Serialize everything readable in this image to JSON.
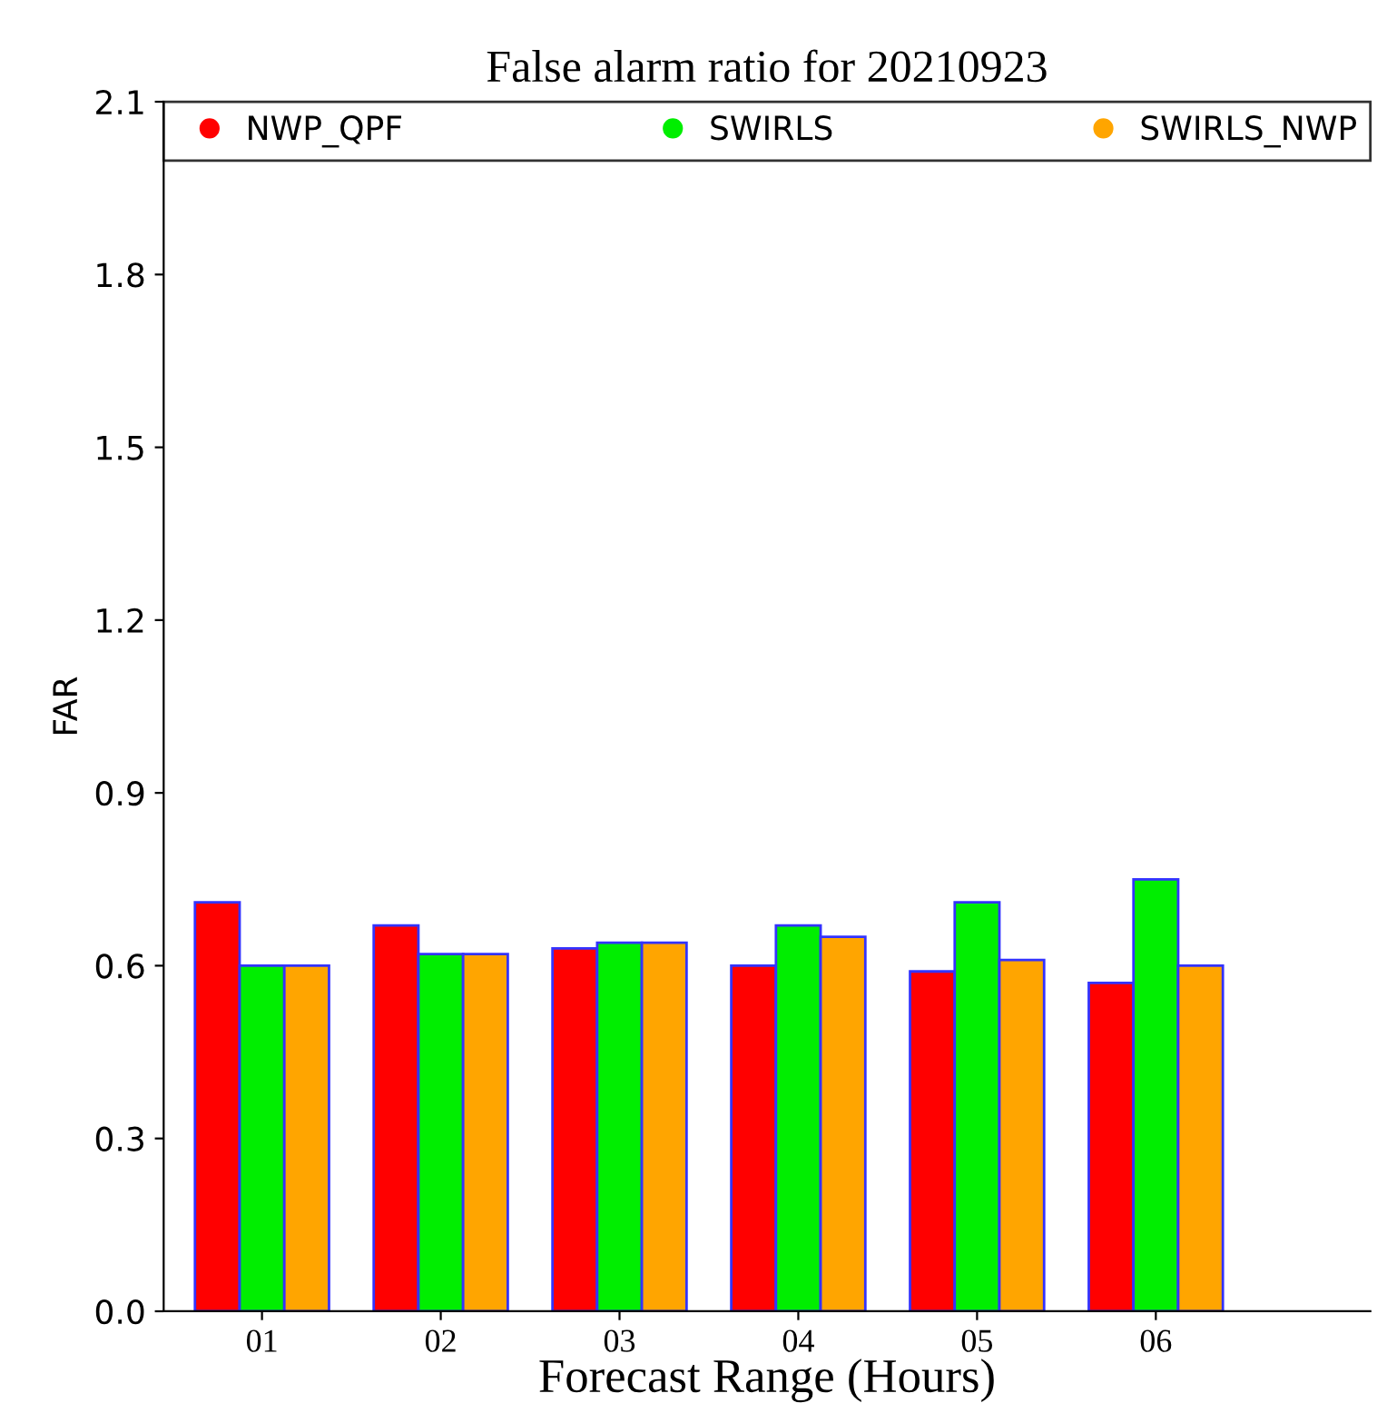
{
  "chart_data": {
    "type": "bar",
    "title": "False alarm ratio for 20210923",
    "xlabel": "Forecast Range (Hours)",
    "ylabel": "FAR",
    "categories": [
      "01",
      "02",
      "03",
      "04",
      "05",
      "06"
    ],
    "series": [
      {
        "name": "NWP_QPF",
        "color": "#ff0000",
        "values": [
          0.71,
          0.67,
          0.63,
          0.6,
          0.59,
          0.57
        ]
      },
      {
        "name": "SWIRLS",
        "color": "#00ee00",
        "values": [
          0.6,
          0.62,
          0.64,
          0.67,
          0.71,
          0.75
        ]
      },
      {
        "name": "SWIRLS_NWP",
        "color": "#ffa500",
        "values": [
          0.6,
          0.62,
          0.64,
          0.65,
          0.61,
          0.6
        ]
      }
    ],
    "ylim": [
      0,
      2.1
    ],
    "yticks": [
      {
        "value": 0,
        "label": "0.0"
      },
      {
        "value": 0.3,
        "label": "0.3"
      },
      {
        "value": 0.6,
        "label": "0.6"
      },
      {
        "value": 0.9,
        "label": "0.9"
      },
      {
        "value": 1.2,
        "label": "1.2"
      },
      {
        "value": 1.5,
        "label": "1.5"
      },
      {
        "value": 1.8,
        "label": "1.8"
      },
      {
        "value": 2.1,
        "label": "2.1"
      }
    ],
    "grid": false,
    "legend": "top"
  }
}
